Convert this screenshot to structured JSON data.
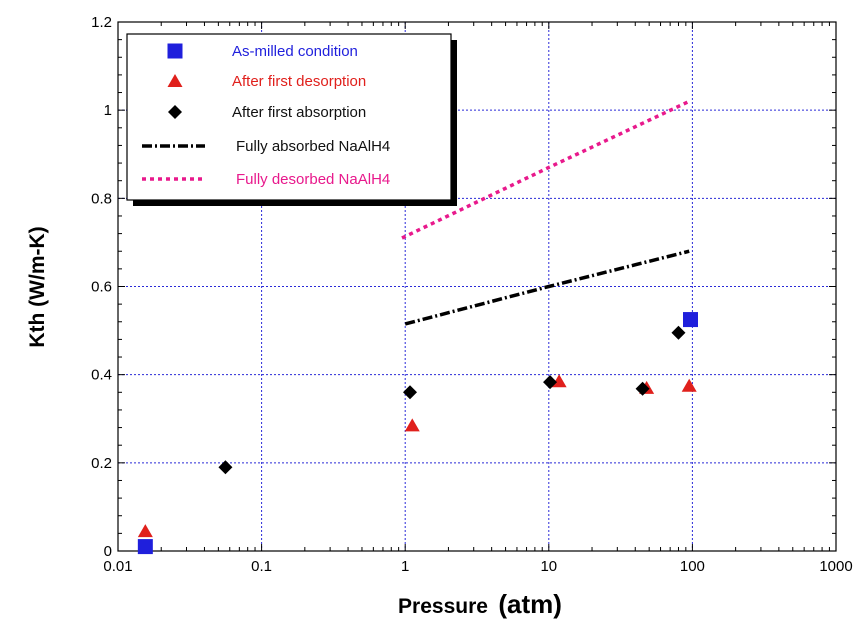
{
  "chart_data": {
    "type": "scatter",
    "xlabel_main": "Pressure",
    "xlabel_unit": "(atm)",
    "ylabel": "Kth (W/m-K)",
    "x_scale": "log",
    "xlim": [
      0.01,
      1000
    ],
    "ylim": [
      0,
      1.2
    ],
    "x_ticks": [
      0.01,
      0.1,
      1,
      10,
      100,
      1000
    ],
    "x_tick_labels": [
      "0.01",
      "0.1",
      "1",
      "10",
      "100",
      "1000"
    ],
    "y_ticks": [
      0,
      0.2,
      0.4,
      0.6,
      0.8,
      1,
      1.2
    ],
    "y_tick_labels": [
      "0",
      "0.2",
      "0.4",
      "0.6",
      "0.8",
      "1",
      "1.2"
    ],
    "grid": true,
    "legend_position": "top-left",
    "series": [
      {
        "name": "As-milled condition",
        "kind": "points",
        "marker": "square",
        "color": "#1f1fdc",
        "points": [
          [
            0.0155,
            0.01
          ],
          [
            97,
            0.525
          ]
        ]
      },
      {
        "name": "After first desorption",
        "kind": "points",
        "marker": "triangle",
        "color": "#e0201c",
        "points": [
          [
            0.0155,
            0.045
          ],
          [
            1.12,
            0.285
          ],
          [
            11.8,
            0.385
          ],
          [
            48,
            0.37
          ],
          [
            95,
            0.375
          ]
        ]
      },
      {
        "name": "After first absorption",
        "kind": "points",
        "marker": "diamond",
        "color": "#000000",
        "points": [
          [
            0.056,
            0.19
          ],
          [
            1.08,
            0.36
          ],
          [
            10.2,
            0.383
          ],
          [
            45,
            0.368
          ],
          [
            80,
            0.495
          ]
        ]
      },
      {
        "name": "Fully absorbed NaAlH4",
        "kind": "line",
        "dash": "dashdot",
        "color": "#000000",
        "points": [
          [
            1,
            0.515
          ],
          [
            10,
            0.6
          ],
          [
            95,
            0.68
          ]
        ]
      },
      {
        "name": "Fully desorbed NaAlH4",
        "kind": "line",
        "dash": "dot",
        "color": "#e8198c",
        "points": [
          [
            0.95,
            0.71
          ],
          [
            10,
            0.87
          ],
          [
            95,
            1.02
          ]
        ]
      }
    ]
  }
}
